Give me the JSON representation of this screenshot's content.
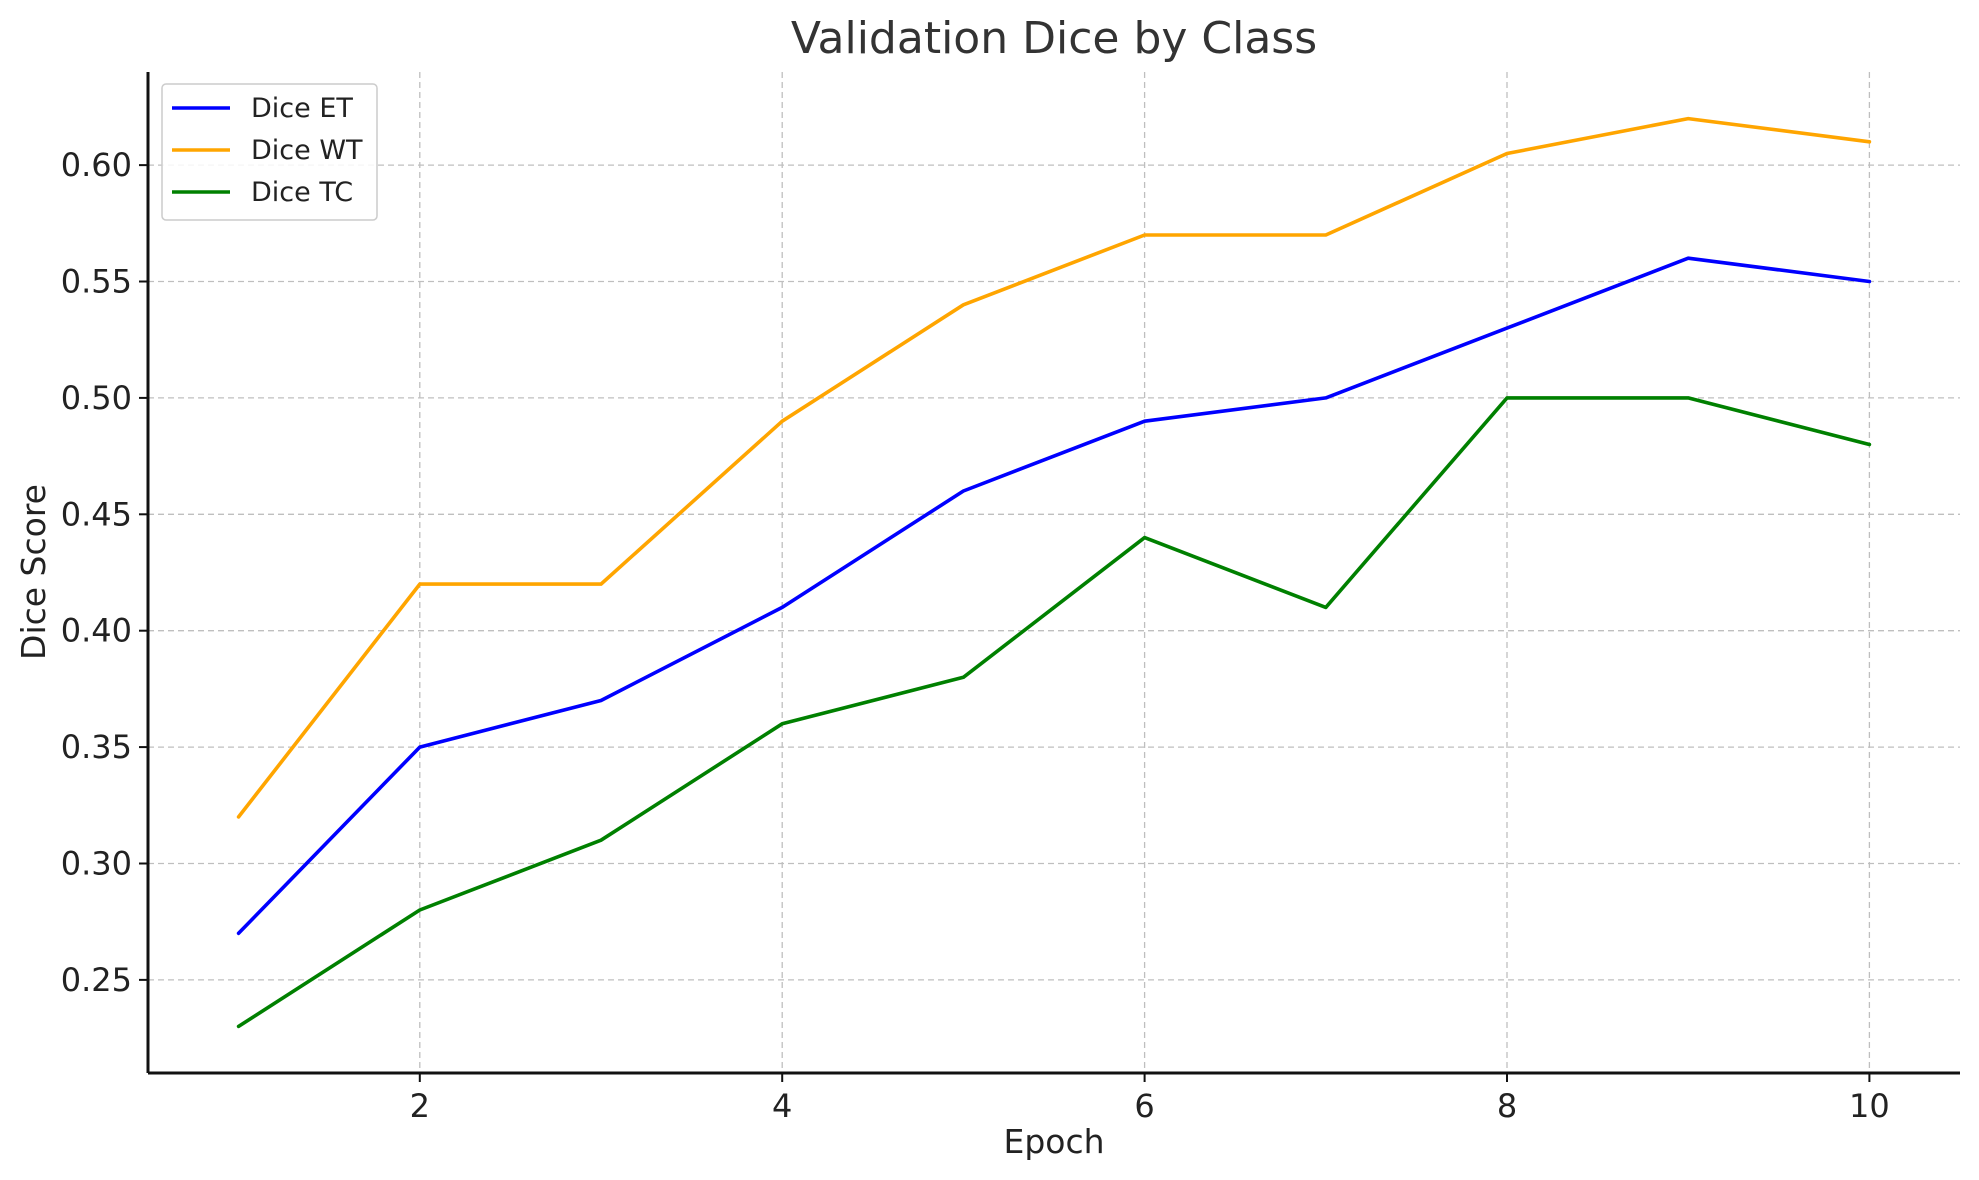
{
  "chart_data": {
    "type": "line",
    "title": "Validation Dice by Class",
    "xlabel": "Epoch",
    "ylabel": "Dice Score",
    "x": [
      1,
      2,
      3,
      4,
      5,
      6,
      7,
      8,
      9,
      10
    ],
    "xlim": [
      0.5,
      10.5
    ],
    "ylim": [
      0.21,
      0.64
    ],
    "xticks": [
      2,
      4,
      6,
      8,
      10
    ],
    "yticks": [
      0.25,
      0.3,
      0.35,
      0.4,
      0.45,
      0.5,
      0.55,
      0.6
    ],
    "ytick_labels": [
      "0.25",
      "0.30",
      "0.35",
      "0.40",
      "0.45",
      "0.50",
      "0.55",
      "0.60"
    ],
    "grid": true,
    "legend_position": "top-left",
    "series": [
      {
        "name": "Dice ET",
        "color": "#0000ff",
        "values": [
          0.27,
          0.35,
          0.37,
          0.41,
          0.46,
          0.49,
          0.5,
          0.53,
          0.56,
          0.55
        ]
      },
      {
        "name": "Dice WT",
        "color": "#ffa500",
        "values": [
          0.32,
          0.42,
          0.42,
          0.49,
          0.54,
          0.57,
          0.57,
          0.605,
          0.62,
          0.61
        ]
      },
      {
        "name": "Dice TC",
        "color": "#008000",
        "values": [
          0.23,
          0.28,
          0.31,
          0.36,
          0.38,
          0.44,
          0.41,
          0.5,
          0.5,
          0.48
        ]
      }
    ]
  }
}
